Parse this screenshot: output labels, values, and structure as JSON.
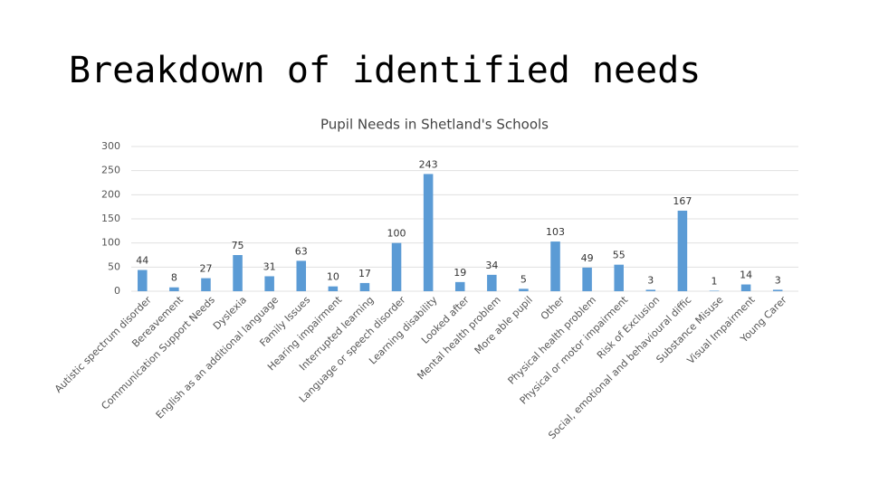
{
  "heading": "Breakdown of identified needs",
  "chart_data": {
    "type": "bar",
    "title": "Pupil Needs in Shetland's Schools",
    "categories": [
      "Autistic spectrum disorder",
      "Bereavement",
      "Communication Support Needs",
      "Dyslexia",
      "English as an additional language",
      "Family Issues",
      "Hearing impairment",
      "Interrupted learning",
      "Language or speech disorder",
      "Learning disability",
      "Looked after",
      "Mental health problem",
      "More able pupil",
      "Other",
      "Physical health problem",
      "Physical or motor impairment",
      "Risk of Exclusion",
      "Social, emotional and behavioural diffic",
      "Substance Misuse",
      "Visual Impairment",
      "Young Carer"
    ],
    "values": [
      44,
      8,
      27,
      75,
      31,
      63,
      10,
      17,
      100,
      243,
      19,
      34,
      5,
      103,
      49,
      55,
      3,
      167,
      1,
      14,
      3
    ],
    "color": "#5b9bd5",
    "ylim": [
      0,
      300
    ],
    "yticks": [
      0,
      50,
      100,
      150,
      200,
      250,
      300
    ],
    "grid": true
  }
}
